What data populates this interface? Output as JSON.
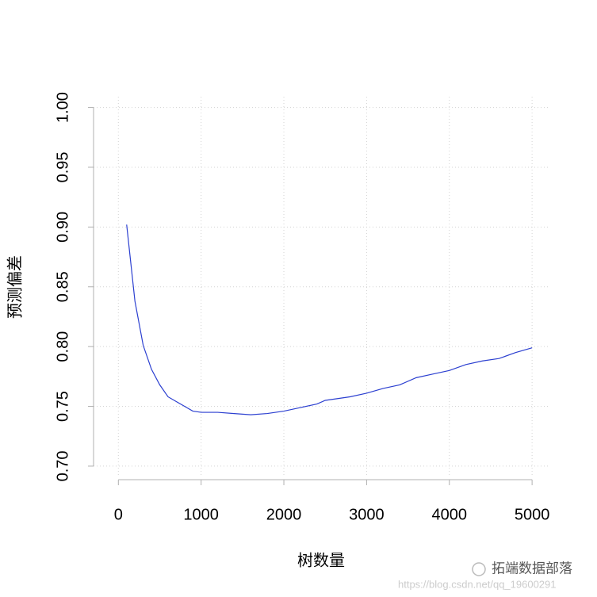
{
  "chart_data": {
    "type": "line",
    "x_label": "树数量",
    "y_label": "预测偏差",
    "x": [
      100,
      200,
      300,
      400,
      500,
      600,
      700,
      800,
      900,
      1000,
      1200,
      1400,
      1600,
      1800,
      2000,
      2200,
      2400,
      2500,
      2800,
      3000,
      3200,
      3400,
      3600,
      3800,
      4000,
      4200,
      4400,
      4600,
      4800,
      5000
    ],
    "series": [
      {
        "color": "#2b3fd0",
        "values": [
          0.902,
          0.838,
          0.801,
          0.781,
          0.768,
          0.758,
          0.754,
          0.75,
          0.746,
          0.745,
          0.745,
          0.744,
          0.743,
          0.744,
          0.746,
          0.749,
          0.752,
          0.755,
          0.758,
          0.761,
          0.765,
          0.768,
          0.774,
          0.777,
          0.78,
          0.785,
          0.788,
          0.79,
          0.795,
          0.799
        ]
      }
    ],
    "xlim": [
      -300,
      5200
    ],
    "ylim": [
      0.692,
      1.009
    ],
    "xticks": [
      0,
      1000,
      2000,
      3000,
      4000,
      5000
    ],
    "yticks": [
      {
        "value": 0.7,
        "label": "0.70"
      },
      0.75,
      {
        "value": 0.8,
        "label": "0.80"
      },
      0.85,
      {
        "value": 0.9,
        "label": "0.90"
      },
      0.95,
      {
        "value": 1.0,
        "label": "1.00"
      }
    ],
    "grid": true,
    "watermark": "拓端数据部落",
    "watermark_url": "https://blog.csdn.net/qq_19600291"
  }
}
